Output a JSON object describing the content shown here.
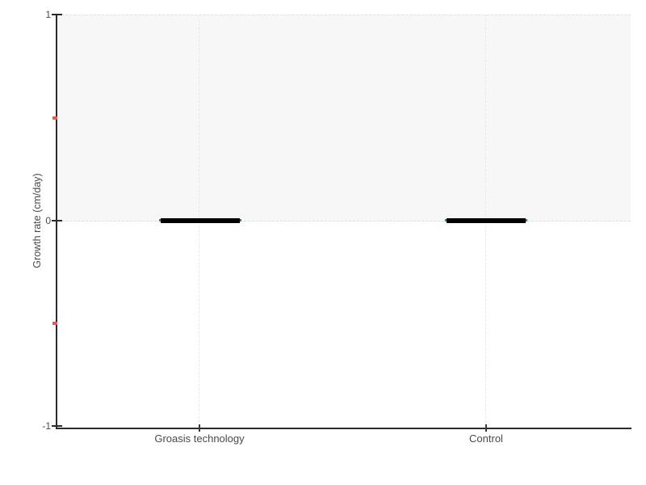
{
  "chart_data": {
    "type": "box",
    "title": "",
    "categories": [
      "Groasis technology",
      "Control"
    ],
    "series": [
      {
        "name": "Growth rate",
        "values": [
          0,
          0
        ],
        "note": "box plots fully collapsed at 0 (min=q1=median=q3=max=0), drawn as thick black horizontal bars"
      }
    ],
    "xlabel": "",
    "ylabel": "Growth rate (cm/day)",
    "ylim": [
      -1,
      1
    ],
    "yticks_major": [
      1,
      0,
      -1
    ],
    "yticks_minor": [
      0.5,
      -0.5
    ],
    "shaded_band": {
      "from": 0,
      "to": 1,
      "fill": "#f7f7f7",
      "border": "dashed"
    },
    "grid": "dashed vertical line at each category",
    "legend_position": "none"
  },
  "axes": {
    "y": {
      "title": "Growth rate (cm/day)",
      "ticks": [
        {
          "label": "1"
        },
        {
          "label": "0"
        },
        {
          "label": "-1"
        }
      ],
      "minor_ticks": [
        "0.5",
        "-0.5"
      ]
    },
    "x": {
      "ticks": [
        {
          "label": "Groasis technology"
        },
        {
          "label": "Control"
        }
      ]
    }
  },
  "colors": {
    "background": "#ffffff",
    "axis_line": "#2b2b2b",
    "band_fill": "#f7f7f7",
    "dash_grid": "#e7e7e7",
    "text": "#4a4a4a",
    "minor_tick_red": "#e25a52",
    "box_bar": "#000000",
    "median_green": "#2f8f3a"
  }
}
